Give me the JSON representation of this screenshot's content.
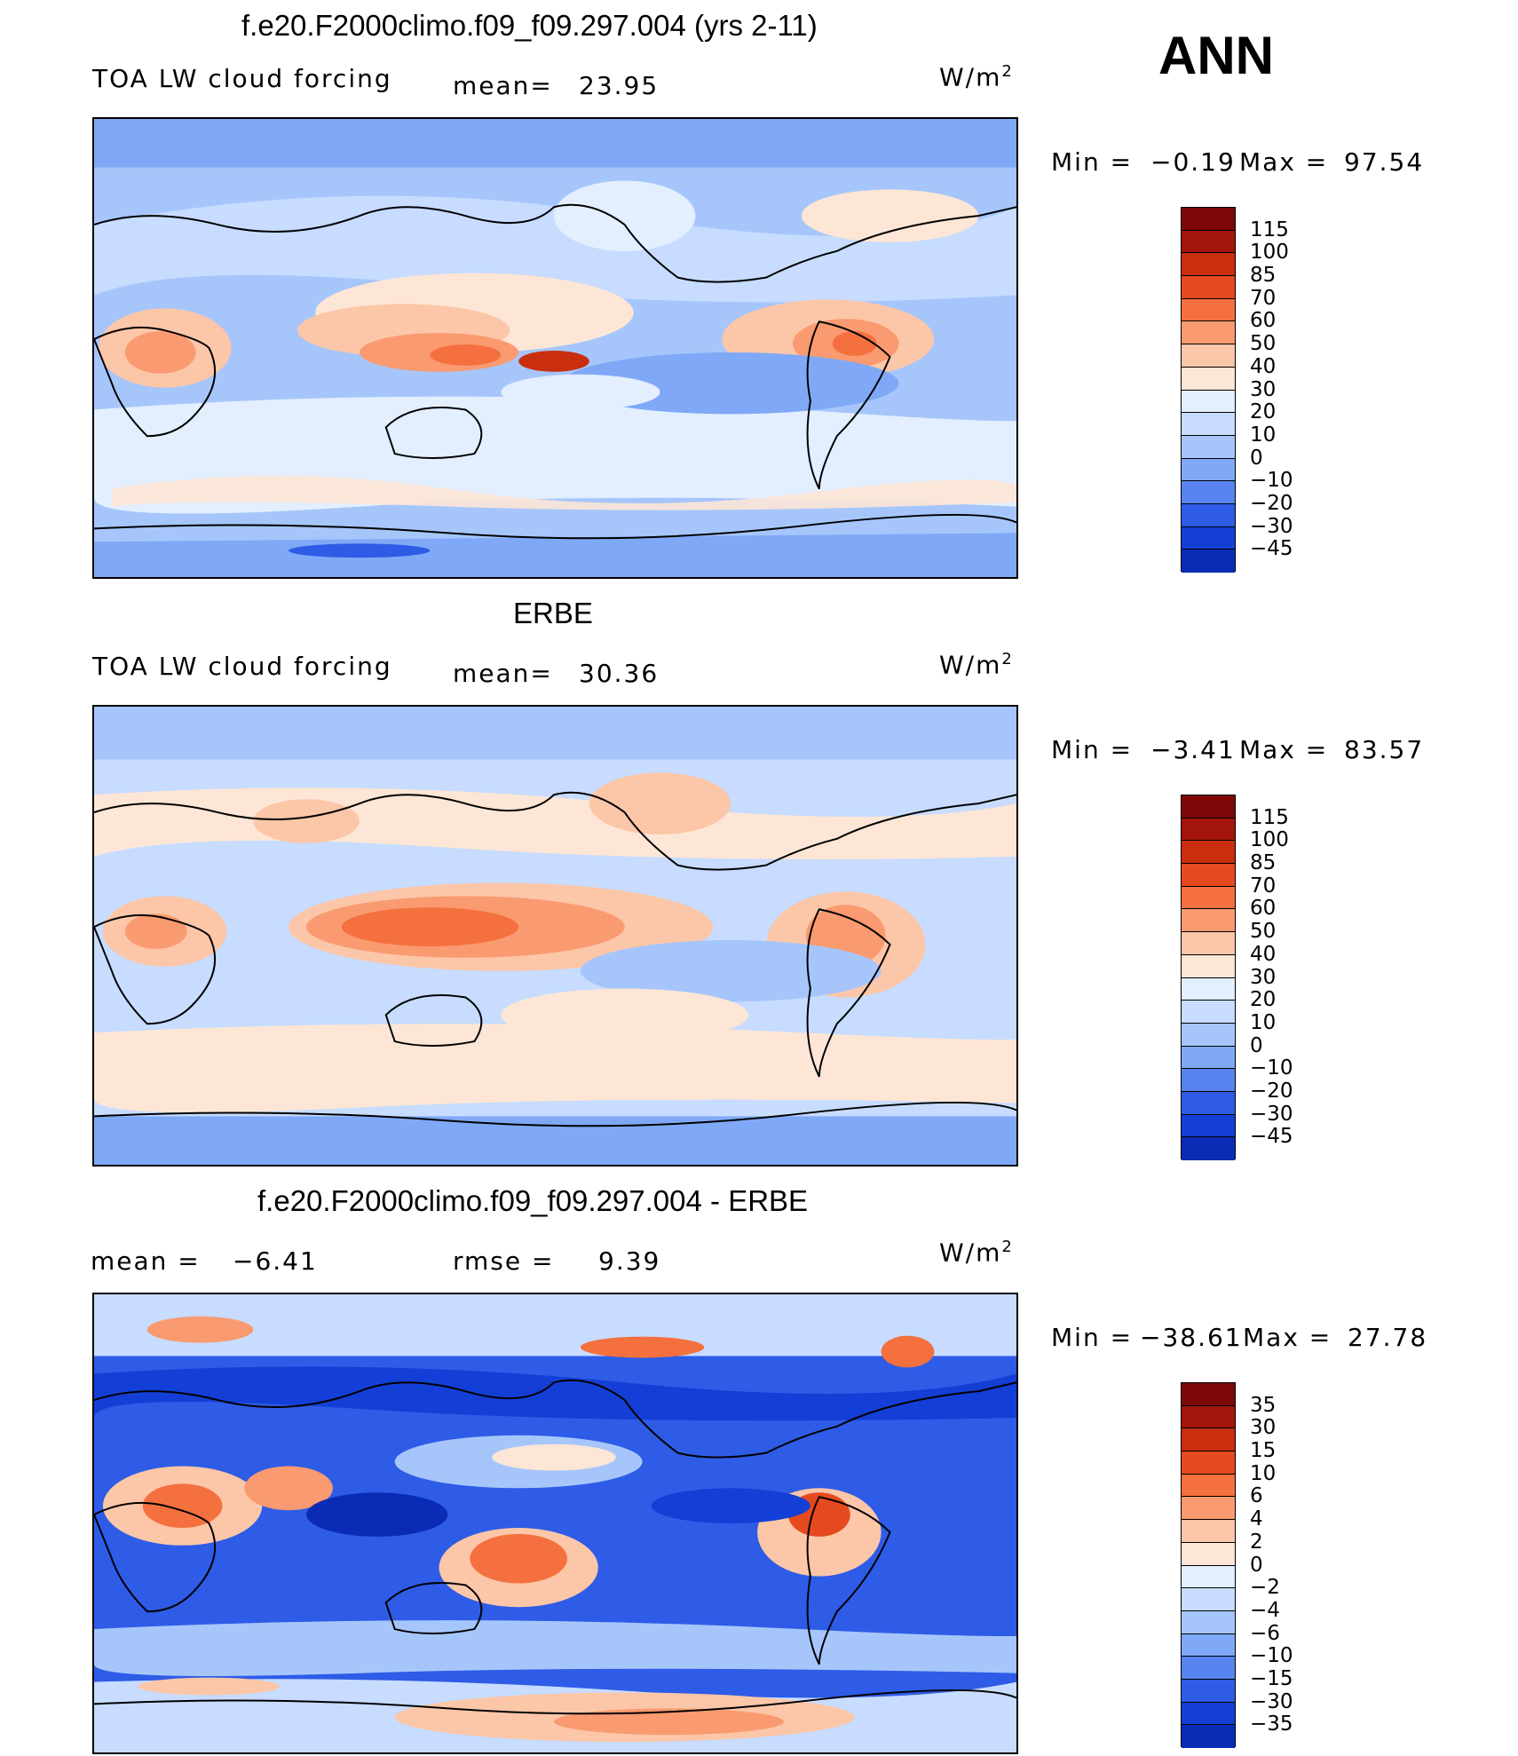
{
  "season_label": "ANN",
  "colors": {
    "panel_scale": [
      "#e3efff",
      "#c7dcff",
      "#a6c6fb",
      "#7fa9f6",
      "#5884ef",
      "#2e5ce6",
      "#143fd6",
      "#0a2cb5",
      "#04188a",
      "#fde6d6",
      "#fcc6a8",
      "#fa9a70",
      "#f4703e",
      "#e54a1f",
      "#c92e0e",
      "#a3150a",
      "#7d0606"
    ]
  },
  "panels": [
    {
      "title": "f.e20.F2000climo.f09_f09.297.004 (yrs 2-11)",
      "left_label": "TOA LW cloud forcing",
      "mean_label": "mean=",
      "mean_value": "23.95",
      "units_base": "W/m",
      "units_exp": "2",
      "min_label": "Min =",
      "min_value": "−0.19",
      "max_label": "Max =",
      "max_value": "97.54",
      "colorbar_labels": [
        "115",
        "100",
        "85",
        "70",
        "60",
        "50",
        "40",
        "30",
        "20",
        "10",
        "0",
        "−10",
        "−20",
        "−30",
        "−45"
      ],
      "colorbar_colors": [
        "#7d0606",
        "#a3150a",
        "#c92e0e",
        "#e54a1f",
        "#f4703e",
        "#fa9a70",
        "#fcc6a8",
        "#fde6d6",
        "#e3efff",
        "#c7dcff",
        "#a6c6fb",
        "#7fa9f6",
        "#5884ef",
        "#2e5ce6",
        "#143fd6",
        "#0a2cb5"
      ]
    },
    {
      "title": "ERBE",
      "left_label": "TOA LW cloud forcing",
      "mean_label": "mean=",
      "mean_value": "30.36",
      "units_base": "W/m",
      "units_exp": "2",
      "min_label": "Min =",
      "min_value": "−3.41",
      "max_label": "Max =",
      "max_value": "83.57",
      "colorbar_labels": [
        "115",
        "100",
        "85",
        "70",
        "60",
        "50",
        "40",
        "30",
        "20",
        "10",
        "0",
        "−10",
        "−20",
        "−30",
        "−45"
      ],
      "colorbar_colors": [
        "#7d0606",
        "#a3150a",
        "#c92e0e",
        "#e54a1f",
        "#f4703e",
        "#fa9a70",
        "#fcc6a8",
        "#fde6d6",
        "#e3efff",
        "#c7dcff",
        "#a6c6fb",
        "#7fa9f6",
        "#5884ef",
        "#2e5ce6",
        "#143fd6",
        "#0a2cb5"
      ]
    },
    {
      "title": "f.e20.F2000climo.f09_f09.297.004 - ERBE",
      "left_label": "mean =",
      "mean_label": "",
      "mean_value": "−6.41",
      "rmse_label": "rmse =",
      "rmse_value": "9.39",
      "units_base": "W/m",
      "units_exp": "2",
      "min_label": "Min =",
      "min_value": "−38.61",
      "max_label": "Max =",
      "max_value": "27.78",
      "colorbar_labels": [
        "35",
        "30",
        "15",
        "10",
        "6",
        "4",
        "2",
        "0",
        "−2",
        "−4",
        "−6",
        "−10",
        "−15",
        "−30",
        "−35"
      ],
      "colorbar_colors": [
        "#7d0606",
        "#a3150a",
        "#c92e0e",
        "#e54a1f",
        "#f4703e",
        "#fa9a70",
        "#fcc6a8",
        "#fde6d6",
        "#e3efff",
        "#c7dcff",
        "#a6c6fb",
        "#7fa9f6",
        "#5884ef",
        "#2e5ce6",
        "#143fd6",
        "#0a2cb5"
      ]
    }
  ],
  "chart_data": [
    {
      "type": "heatmap",
      "title": "f.e20.F2000climo.f09_f09.297.004 (yrs 2-11)",
      "variable": "TOA LW cloud forcing",
      "units": "W/m2",
      "mean": 23.95,
      "min": -0.19,
      "max": 97.54,
      "colorbar_levels": [
        115,
        100,
        85,
        70,
        60,
        50,
        40,
        30,
        20,
        10,
        0,
        -10,
        -20,
        -30,
        -45
      ]
    },
    {
      "type": "heatmap",
      "title": "ERBE",
      "variable": "TOA LW cloud forcing",
      "units": "W/m2",
      "mean": 30.36,
      "min": -3.41,
      "max": 83.57,
      "colorbar_levels": [
        115,
        100,
        85,
        70,
        60,
        50,
        40,
        30,
        20,
        10,
        0,
        -10,
        -20,
        -30,
        -45
      ]
    },
    {
      "type": "heatmap",
      "title": "f.e20.F2000climo.f09_f09.297.004 - ERBE",
      "units": "W/m2",
      "mean": -6.41,
      "rmse": 9.39,
      "min": -38.61,
      "max": 27.78,
      "colorbar_levels": [
        35,
        30,
        15,
        10,
        6,
        4,
        2,
        0,
        -2,
        -4,
        -6,
        -10,
        -15,
        -30,
        -35
      ]
    }
  ]
}
